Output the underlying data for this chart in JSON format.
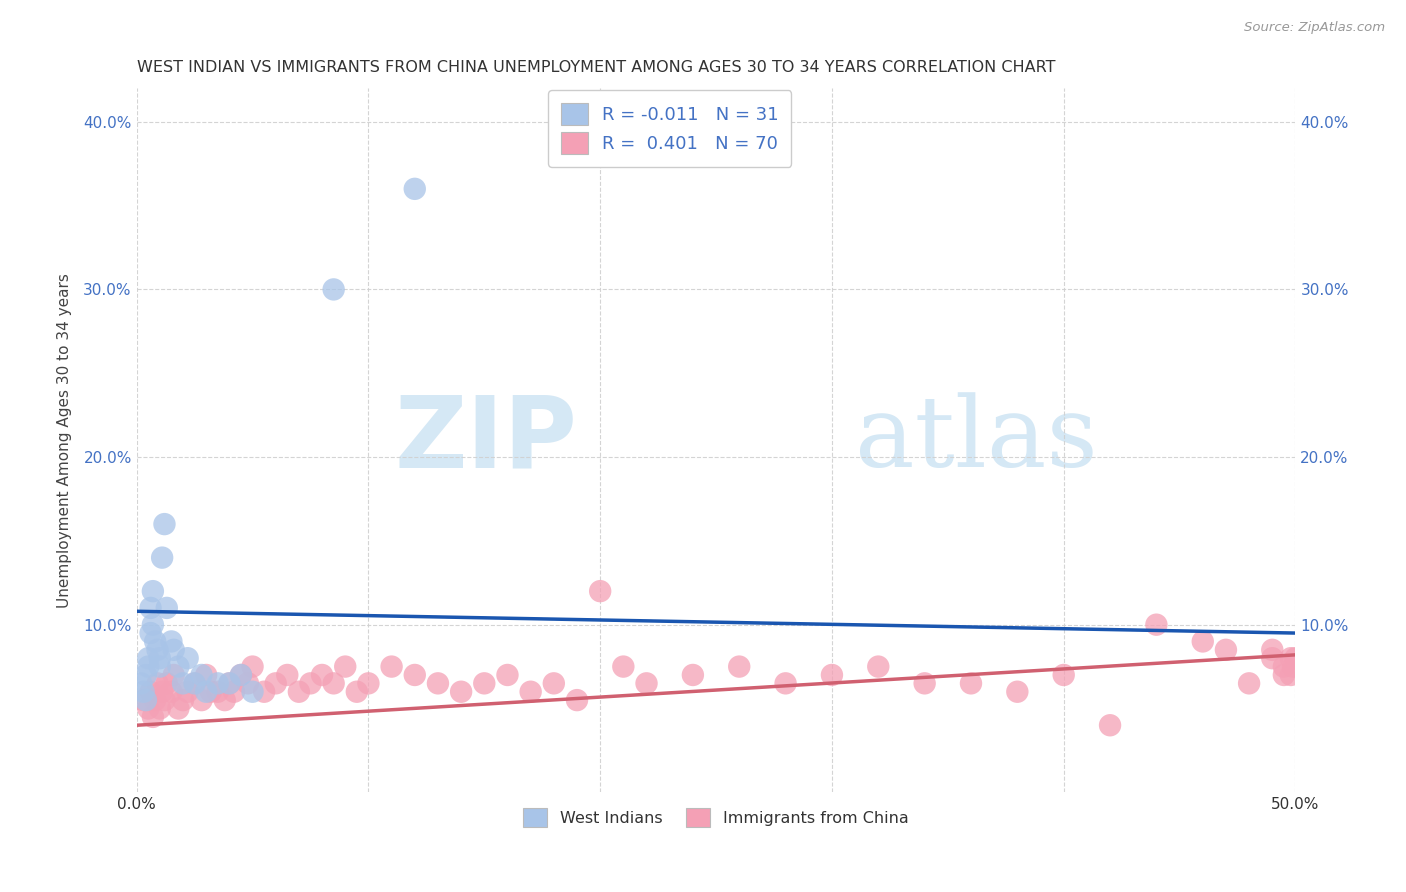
{
  "title": "WEST INDIAN VS IMMIGRANTS FROM CHINA UNEMPLOYMENT AMONG AGES 30 TO 34 YEARS CORRELATION CHART",
  "source": "Source: ZipAtlas.com",
  "ylabel": "Unemployment Among Ages 30 to 34 years",
  "west_indians_R": -0.011,
  "west_indians_N": 31,
  "china_R": 0.401,
  "china_N": 70,
  "xlim": [
    0.0,
    0.5
  ],
  "ylim": [
    0.0,
    0.42
  ],
  "west_indians_color": "#a8c4e8",
  "west_indians_line_color": "#1a56b0",
  "china_color": "#f4a0b5",
  "china_line_color": "#d06070",
  "wi_line_x0": 0.0,
  "wi_line_x1": 0.5,
  "wi_line_y0": 0.108,
  "wi_line_y1": 0.095,
  "ch_line_x0": 0.0,
  "ch_line_x1": 0.5,
  "ch_line_y0": 0.04,
  "ch_line_y1": 0.082,
  "west_indians_x": [
    0.002,
    0.003,
    0.004,
    0.004,
    0.005,
    0.005,
    0.006,
    0.006,
    0.007,
    0.007,
    0.008,
    0.009,
    0.01,
    0.01,
    0.011,
    0.012,
    0.013,
    0.015,
    0.016,
    0.018,
    0.02,
    0.022,
    0.025,
    0.028,
    0.03,
    0.035,
    0.04,
    0.045,
    0.05,
    0.085,
    0.12
  ],
  "west_indians_y": [
    0.065,
    0.06,
    0.07,
    0.055,
    0.075,
    0.08,
    0.095,
    0.11,
    0.1,
    0.12,
    0.09,
    0.085,
    0.08,
    0.075,
    0.14,
    0.16,
    0.11,
    0.09,
    0.085,
    0.075,
    0.065,
    0.08,
    0.065,
    0.07,
    0.06,
    0.065,
    0.065,
    0.07,
    0.06,
    0.3,
    0.36
  ],
  "china_x": [
    0.003,
    0.005,
    0.006,
    0.007,
    0.008,
    0.009,
    0.01,
    0.011,
    0.012,
    0.013,
    0.015,
    0.016,
    0.018,
    0.02,
    0.022,
    0.025,
    0.028,
    0.03,
    0.032,
    0.035,
    0.038,
    0.04,
    0.042,
    0.045,
    0.048,
    0.05,
    0.055,
    0.06,
    0.065,
    0.07,
    0.075,
    0.08,
    0.085,
    0.09,
    0.095,
    0.1,
    0.11,
    0.12,
    0.13,
    0.14,
    0.15,
    0.16,
    0.17,
    0.18,
    0.19,
    0.2,
    0.21,
    0.22,
    0.24,
    0.26,
    0.28,
    0.3,
    0.32,
    0.34,
    0.36,
    0.38,
    0.4,
    0.42,
    0.44,
    0.46,
    0.47,
    0.48,
    0.49,
    0.49,
    0.495,
    0.495,
    0.498,
    0.498,
    0.499,
    0.5
  ],
  "china_y": [
    0.055,
    0.05,
    0.06,
    0.045,
    0.055,
    0.065,
    0.05,
    0.06,
    0.055,
    0.065,
    0.06,
    0.07,
    0.05,
    0.055,
    0.06,
    0.065,
    0.055,
    0.07,
    0.06,
    0.06,
    0.055,
    0.065,
    0.06,
    0.07,
    0.065,
    0.075,
    0.06,
    0.065,
    0.07,
    0.06,
    0.065,
    0.07,
    0.065,
    0.075,
    0.06,
    0.065,
    0.075,
    0.07,
    0.065,
    0.06,
    0.065,
    0.07,
    0.06,
    0.065,
    0.055,
    0.12,
    0.075,
    0.065,
    0.07,
    0.075,
    0.065,
    0.07,
    0.075,
    0.065,
    0.065,
    0.06,
    0.07,
    0.04,
    0.1,
    0.09,
    0.085,
    0.065,
    0.08,
    0.085,
    0.07,
    0.075,
    0.08,
    0.07,
    0.075,
    0.08
  ],
  "background_color": "#ffffff",
  "grid_color": "#d0d0d0"
}
